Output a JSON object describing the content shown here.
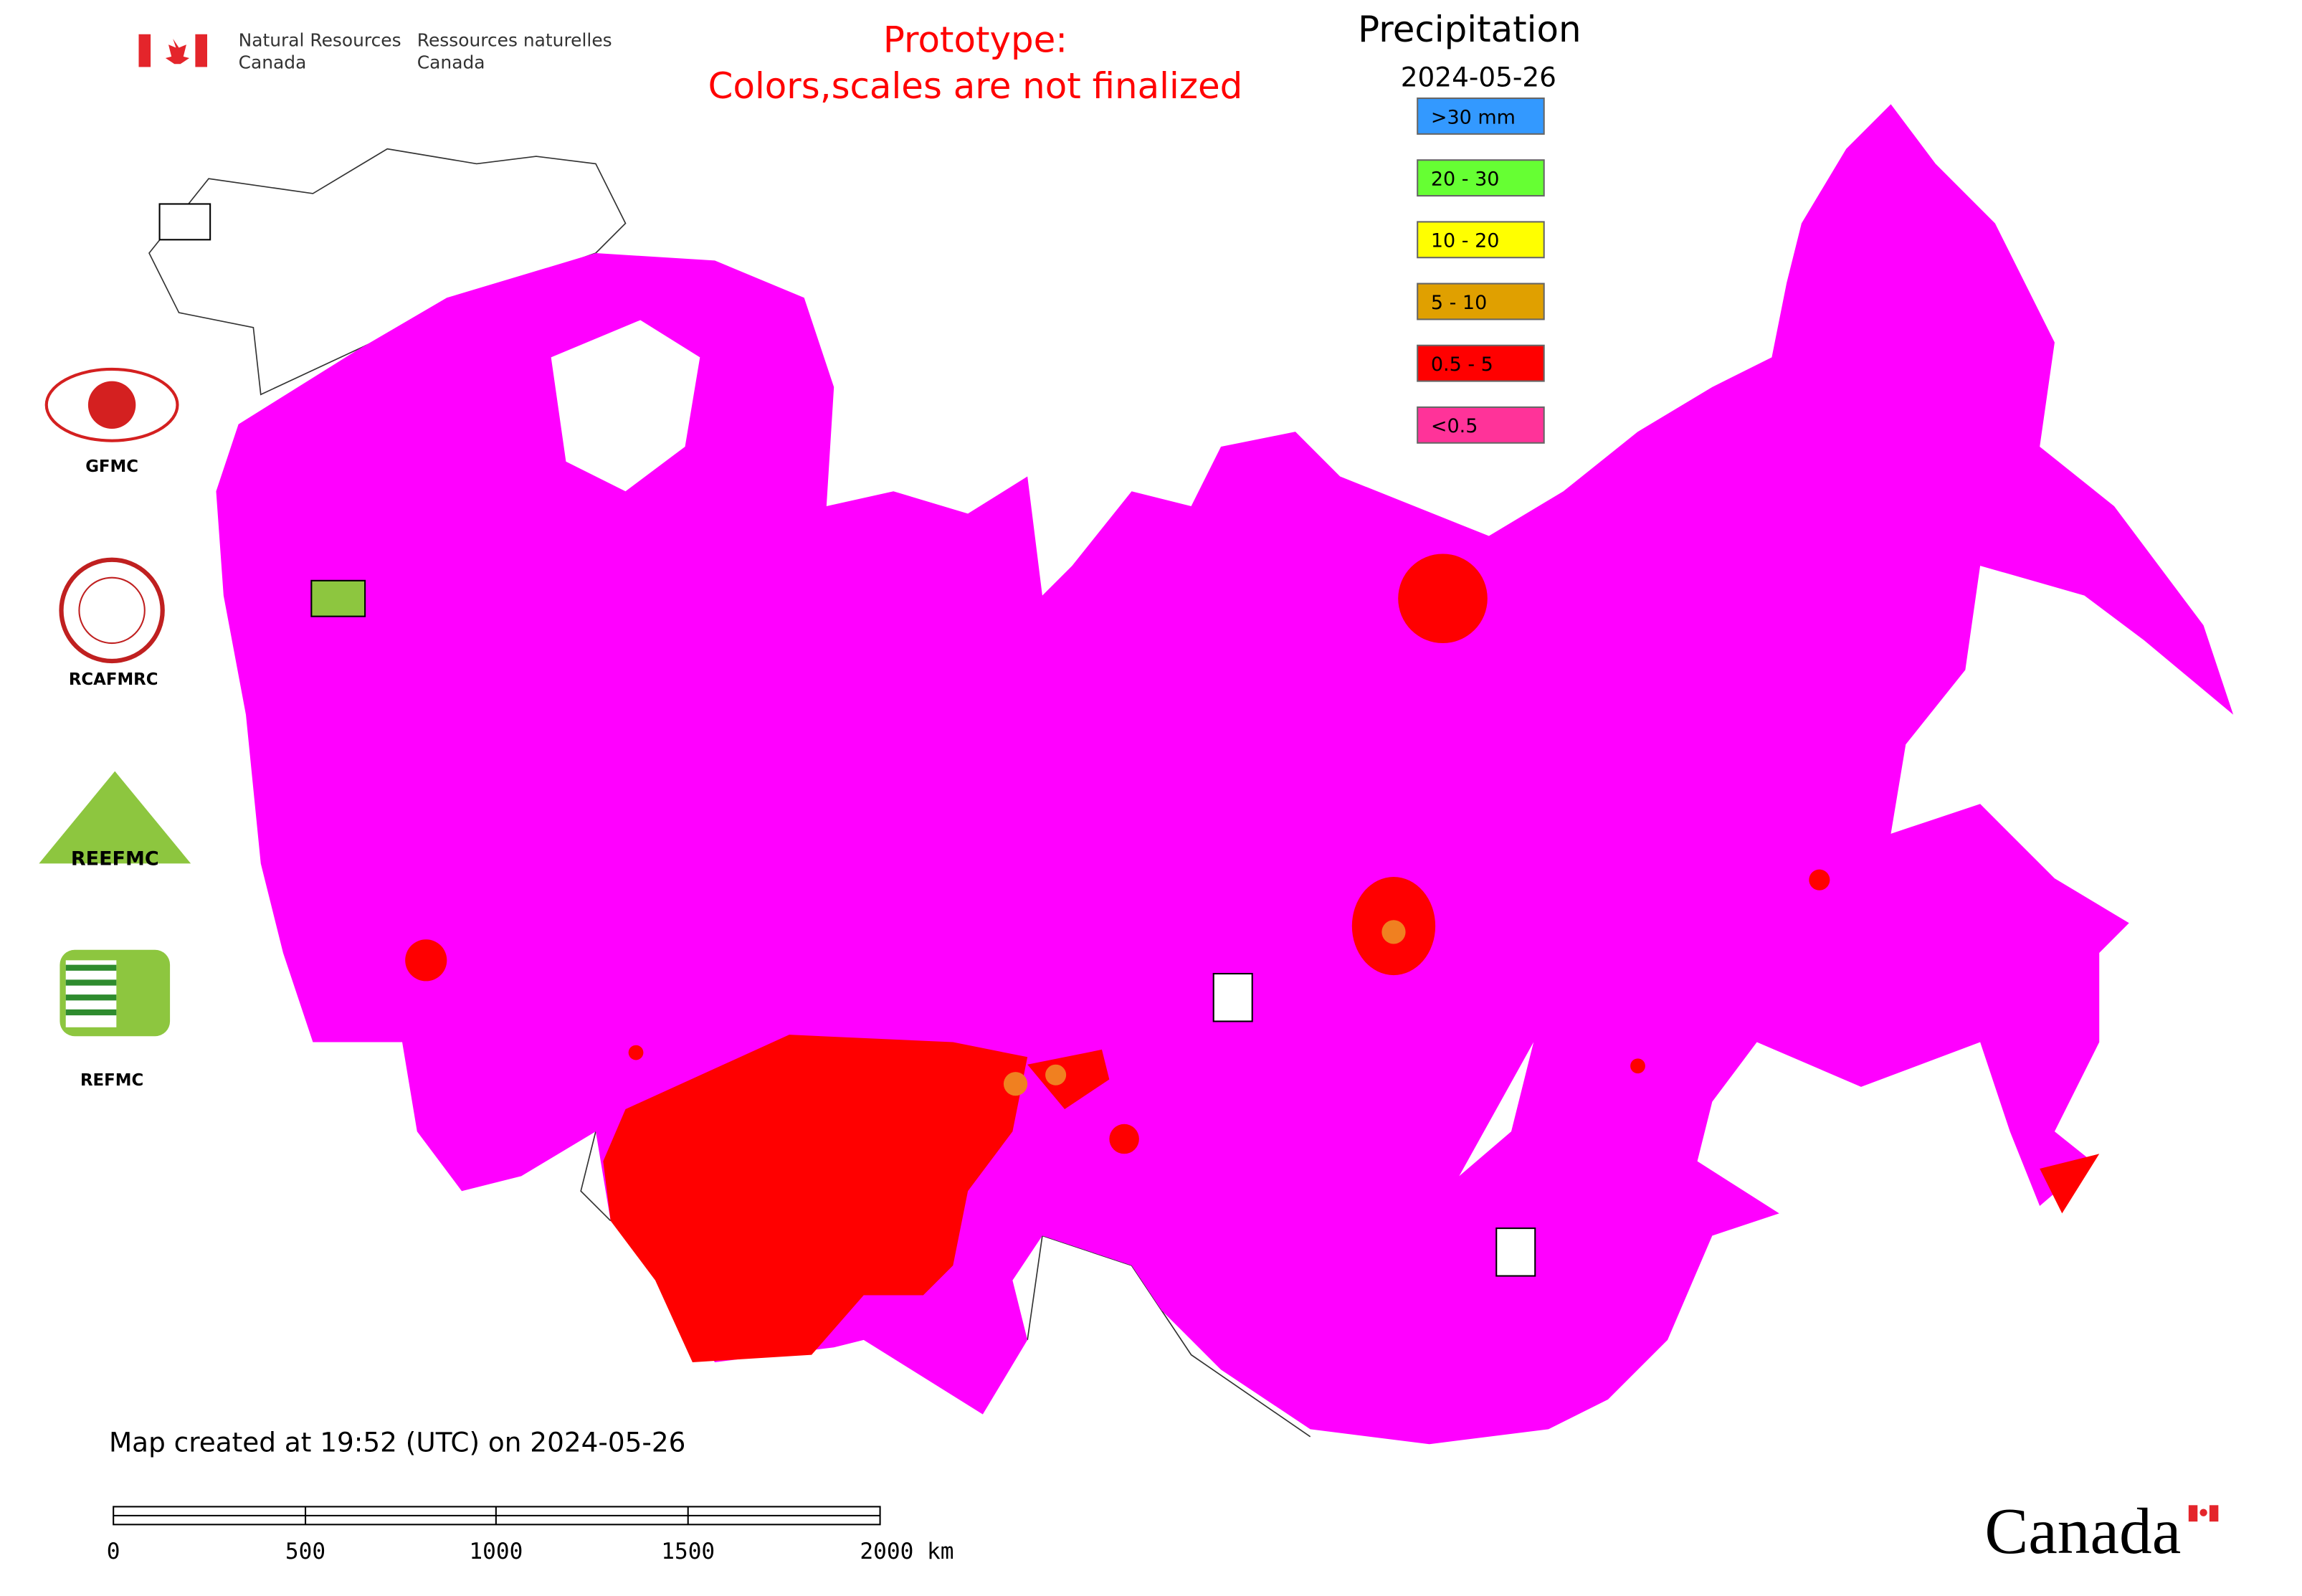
{
  "header": {
    "dept_en": [
      "Natural Resources",
      "Canada"
    ],
    "dept_fr": [
      "Ressources naturelles",
      "Canada"
    ],
    "notice": [
      "Prototype:",
      "Colors,scales are not finalized"
    ]
  },
  "legend": {
    "title": "Precipitation",
    "date": "2024-05-26",
    "items": [
      {
        "label": ">30 mm",
        "color": "#3399ff"
      },
      {
        "label": "20 - 30",
        "color": "#66ff33"
      },
      {
        "label": "10 - 20",
        "color": "#ffff00"
      },
      {
        "label": "5 - 10",
        "color": "#e0a000"
      },
      {
        "label": "0.5 - 5",
        "color": "#ff0000"
      },
      {
        "label": "<0.5",
        "color": "#ff3399"
      }
    ]
  },
  "organizations": [
    "GFMC",
    "RCAFMRC",
    "REEFMC",
    "REFMC"
  ],
  "footer": {
    "created": "Map created at 19:52 (UTC) on 2024-05-26",
    "scale_labels": [
      "0",
      "500",
      "1000",
      "1500",
      "2000 km"
    ],
    "wordmark": "Canada"
  }
}
